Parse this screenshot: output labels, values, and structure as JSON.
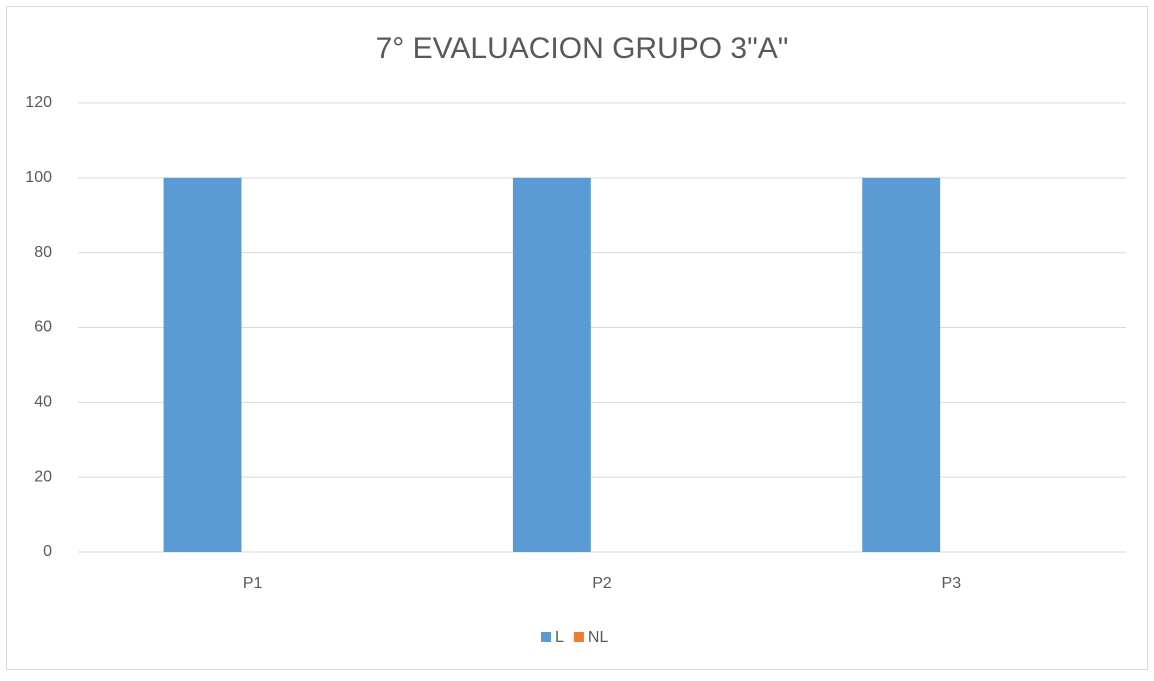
{
  "chart_data": {
    "type": "bar",
    "title": "7° EVALUACION GRUPO 3\"A\"",
    "categories": [
      "P1",
      "P2",
      "P3"
    ],
    "series": [
      {
        "name": "L",
        "color": "#5b9bd5",
        "values": [
          100,
          100,
          100
        ]
      },
      {
        "name": "NL",
        "color": "#ed7d31",
        "values": [
          0,
          0,
          0
        ]
      }
    ],
    "ylim": [
      0,
      120
    ],
    "yticks": [
      0,
      20,
      40,
      60,
      80,
      100,
      120
    ],
    "grid": true,
    "legend": "bottom"
  }
}
